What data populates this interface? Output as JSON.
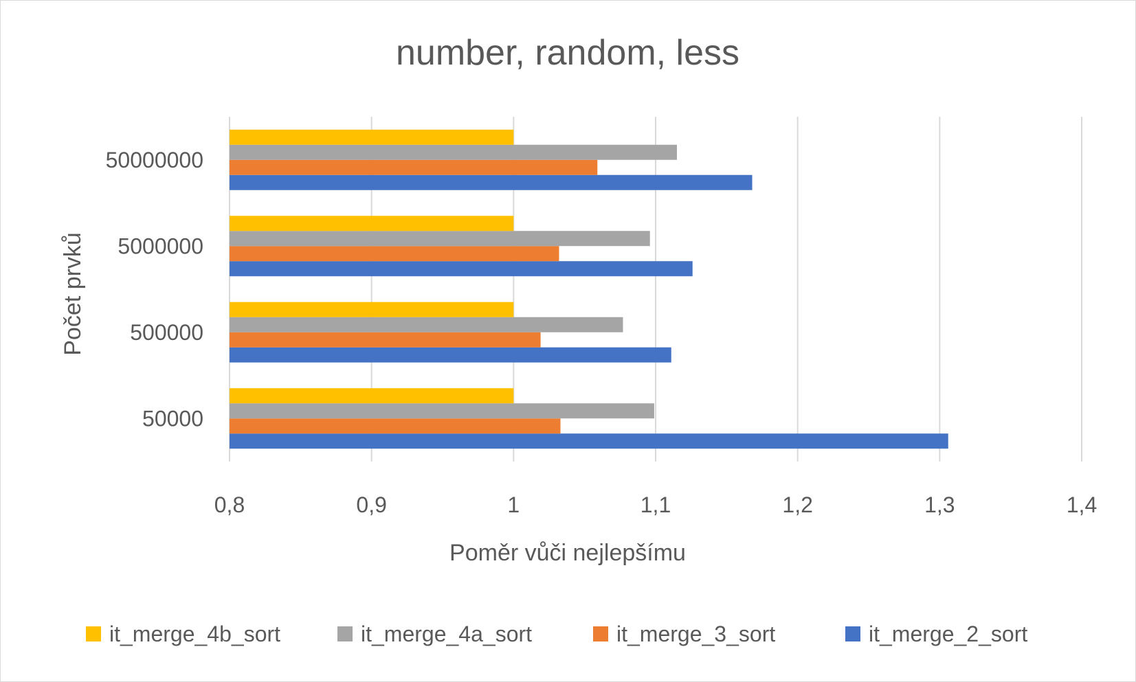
{
  "chart_data": {
    "type": "bar",
    "orientation": "horizontal",
    "title": "number, random, less",
    "xlabel": "Poměr vůči nejlepšímu",
    "ylabel": "Počet prvků",
    "xlim": [
      0.8,
      1.4
    ],
    "xticks": [
      0.8,
      0.9,
      1.0,
      1.1,
      1.2,
      1.3,
      1.4
    ],
    "xtick_labels": [
      "0,8",
      "0,9",
      "1",
      "1,1",
      "1,2",
      "1,3",
      "1,4"
    ],
    "categories": [
      "50000",
      "500000",
      "5000000",
      "50000000"
    ],
    "series": [
      {
        "name": "it_merge_2_sort",
        "color": "#4472C4",
        "values": [
          1.306,
          1.111,
          1.126,
          1.168
        ]
      },
      {
        "name": "it_merge_3_sort",
        "color": "#ED7D31",
        "values": [
          1.033,
          1.019,
          1.032,
          1.059
        ]
      },
      {
        "name": "it_merge_4a_sort",
        "color": "#A5A5A5",
        "values": [
          1.099,
          1.077,
          1.096,
          1.115
        ]
      },
      {
        "name": "it_merge_4b_sort",
        "color": "#FFC000",
        "values": [
          1.0,
          1.0,
          1.0,
          1.0
        ]
      }
    ],
    "legend_order": [
      "it_merge_4b_sort",
      "it_merge_4a_sort",
      "it_merge_3_sort",
      "it_merge_2_sort"
    ],
    "grid": "vertical",
    "legend_position": "bottom"
  }
}
